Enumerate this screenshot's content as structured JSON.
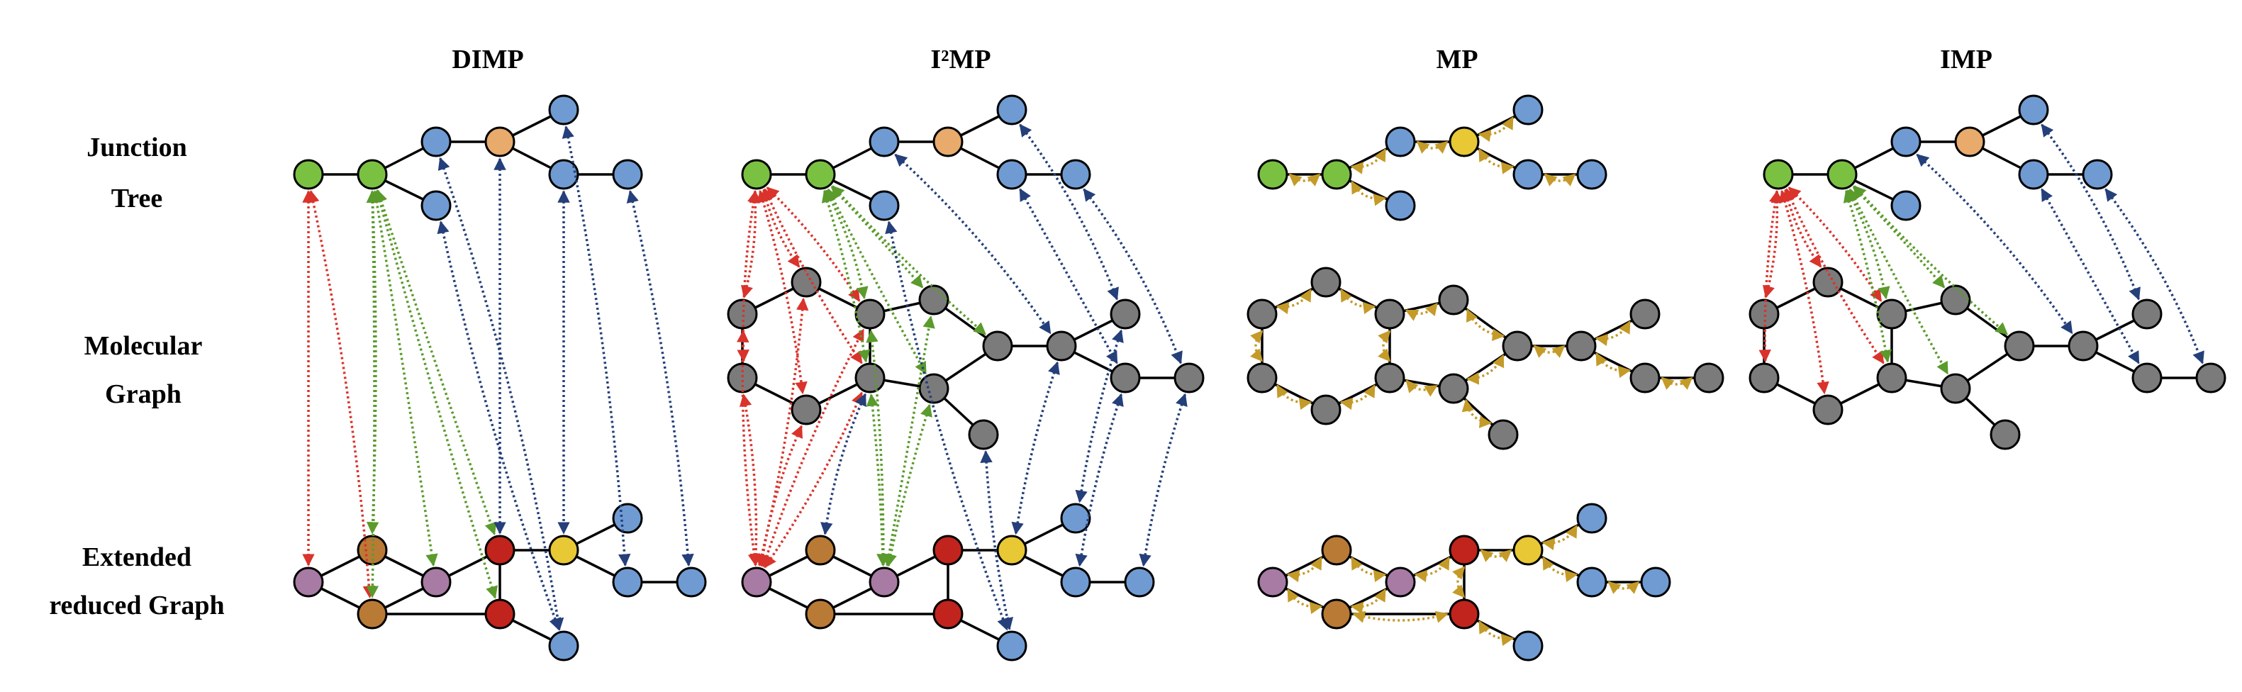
{
  "panel_titles": [
    "DIMP",
    "I²MP",
    "MP",
    "IMP"
  ],
  "row_labels": {
    "junction_tree": [
      "Junction",
      "Tree"
    ],
    "molecular_graph": [
      "Molecular",
      "Graph"
    ],
    "extended_reduced_graph": [
      "Extended",
      "reduced Graph"
    ]
  },
  "colors": {
    "green": "#7ac142",
    "orange": "#e8ab6c",
    "blue": "#6f9bd2",
    "gray": "#7b7b7b",
    "purple": "#a77ba3",
    "brown": "#b97a35",
    "red": "#c0241d",
    "yellow": "#e8c834",
    "arrow_red": "#d9332b",
    "arrow_green": "#5a9b2c",
    "arrow_blue": "#243f7a",
    "arrow_gold": "#c49a28"
  }
}
